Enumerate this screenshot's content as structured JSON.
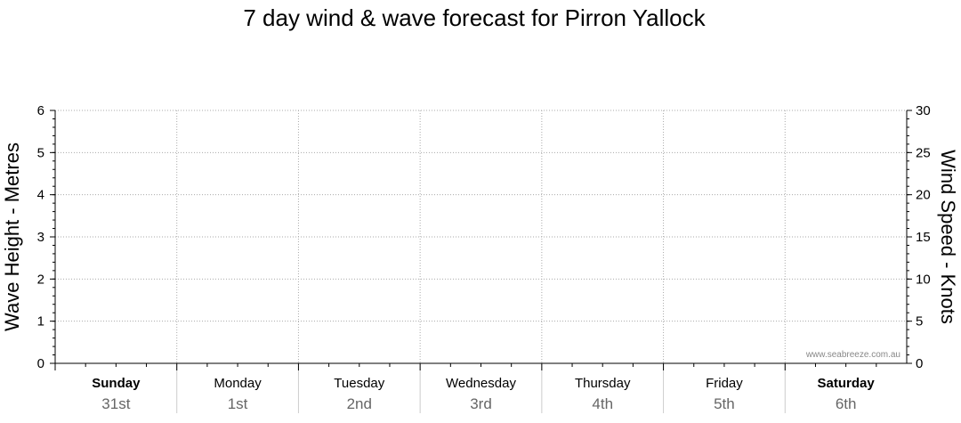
{
  "chart_data": {
    "type": "line",
    "title": "7 day wind & wave forecast for Pirron Yallock",
    "ylabel_left": "Wave Height - Metres",
    "ylabel_right": "Wind Speed - Knots",
    "ylim_left": [
      0,
      6
    ],
    "ylim_right": [
      0,
      30
    ],
    "left_ticks": [
      "0",
      "1",
      "2",
      "3",
      "4",
      "5",
      "6"
    ],
    "right_ticks": [
      "0",
      "5",
      "10",
      "15",
      "20",
      "25",
      "30"
    ],
    "grid": true,
    "days": [
      {
        "name": "Sunday",
        "date": "31st",
        "bold": true
      },
      {
        "name": "Monday",
        "date": "1st",
        "bold": false
      },
      {
        "name": "Tuesday",
        "date": "2nd",
        "bold": false
      },
      {
        "name": "Wednesday",
        "date": "3rd",
        "bold": false
      },
      {
        "name": "Thursday",
        "date": "4th",
        "bold": false
      },
      {
        "name": "Friday",
        "date": "5th",
        "bold": false
      },
      {
        "name": "Saturday",
        "date": "6th",
        "bold": true
      }
    ],
    "series": [],
    "watermark": "www.seabreeze.com.au"
  }
}
